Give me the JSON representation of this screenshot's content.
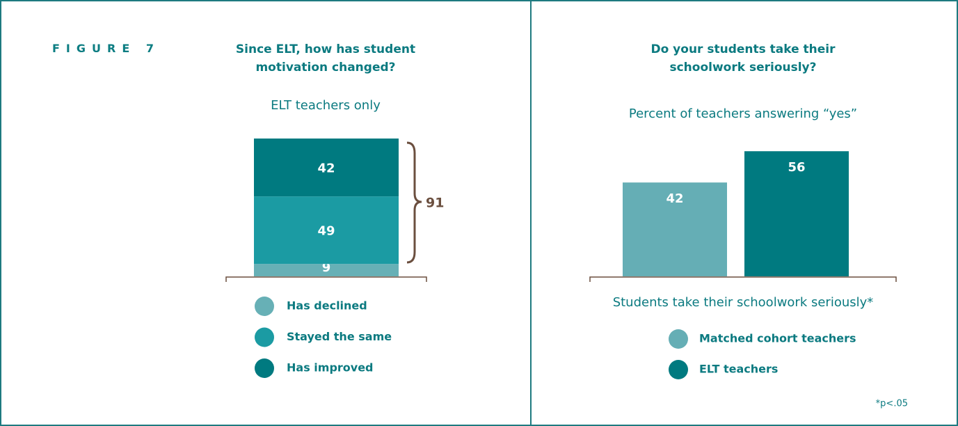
{
  "figure_label": "FIGURE 7",
  "chart_data": [
    {
      "type": "stacked_bar",
      "title": "Since ELT, how has student motivation changed?",
      "subtitle": "ELT teachers only",
      "categories": [
        null
      ],
      "series": [
        {
          "name": "Has declined",
          "color": "#67b0b6",
          "values": [
            9
          ]
        },
        {
          "name": "Stayed the same",
          "color": "#1b9ba3",
          "values": [
            49
          ]
        },
        {
          "name": "Has improved",
          "color": "#007a80",
          "values": [
            42
          ]
        }
      ],
      "annotation": "91"
    },
    {
      "type": "bar",
      "title": "Do your students take their schoolwork seriously?",
      "subtitle": "Percent of teachers answering “yes”",
      "categories": [
        "Students take their schoolwork seriously*"
      ],
      "series": [
        {
          "name": "Matched cohort teachers",
          "color": "#65aeb5",
          "values": [
            42
          ]
        },
        {
          "name": "ELT teachers",
          "color": "#007a80",
          "values": [
            56
          ]
        }
      ],
      "note": "*p<.05"
    }
  ]
}
